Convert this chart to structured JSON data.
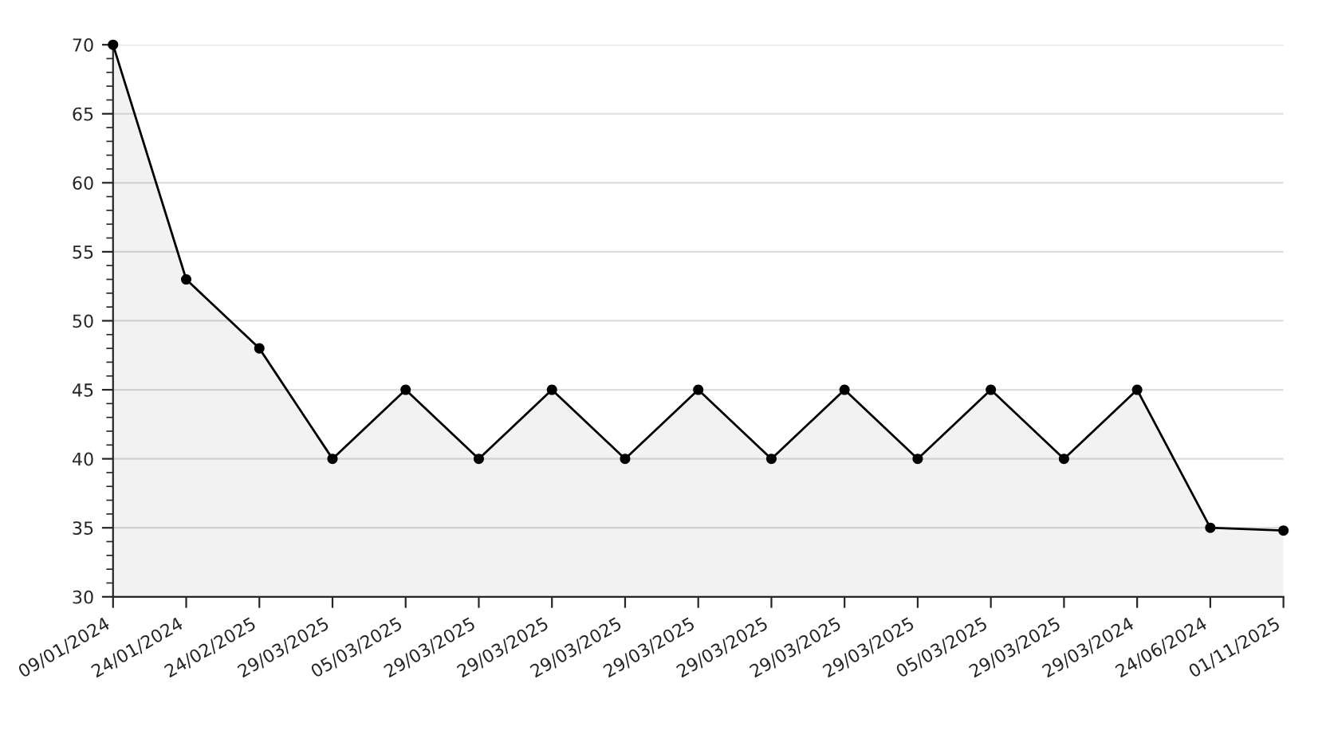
{
  "chart_data": {
    "type": "area",
    "categories": [
      "09/01/2024",
      "24/01/2024",
      "24/02/2025",
      "29/03/2025",
      "05/03/2025",
      "29/03/2025",
      "29/03/2025",
      "29/03/2025",
      "29/03/2025",
      "29/03/2025",
      "29/03/2025",
      "29/03/2025",
      "05/03/2025",
      "29/03/2025",
      "29/03/2024",
      "24/06/2024",
      "01/11/2025"
    ],
    "series": [
      {
        "color": "#000000",
        "values": [
          70,
          53,
          48,
          40,
          45,
          40,
          45,
          40,
          45,
          40,
          45,
          40,
          45,
          40,
          45,
          35,
          34.8
        ]
      }
    ],
    "ylim": [
      30,
      70
    ],
    "yticks": [
      30,
      35,
      40,
      45,
      50,
      55,
      60,
      65,
      70
    ],
    "grid": "y",
    "marker": "circle",
    "line_style": "solid",
    "legend": false
  }
}
